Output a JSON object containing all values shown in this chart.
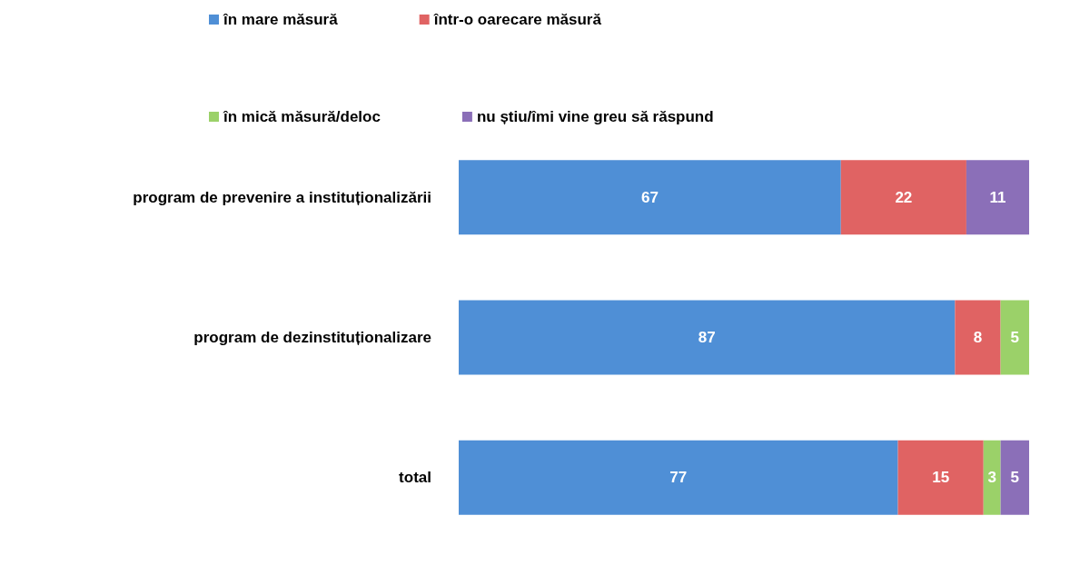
{
  "chart_data": {
    "type": "bar",
    "orientation": "horizontal",
    "stacked": true,
    "categories": [
      "program de prevenire a instituționalizării",
      "program de dezinstituționalizare",
      "total"
    ],
    "series": [
      {
        "name": "în mare măsură",
        "color": "#4f8fd6",
        "values": [
          67,
          87,
          77
        ]
      },
      {
        "name": "într-o oarecare măsură",
        "color": "#e06363",
        "values": [
          22,
          8,
          15
        ]
      },
      {
        "name": "în mică măsură/deloc",
        "color": "#9bd169",
        "values": [
          null,
          5,
          3
        ]
      },
      {
        "name": "nu știu/îmi vine greu să răspund",
        "color": "#8b6fb8",
        "values": [
          11,
          null,
          5
        ]
      }
    ],
    "xlim": [
      0,
      100
    ],
    "data_labels": true,
    "legend": "top",
    "tick_labels": "y",
    "grid": false
  }
}
